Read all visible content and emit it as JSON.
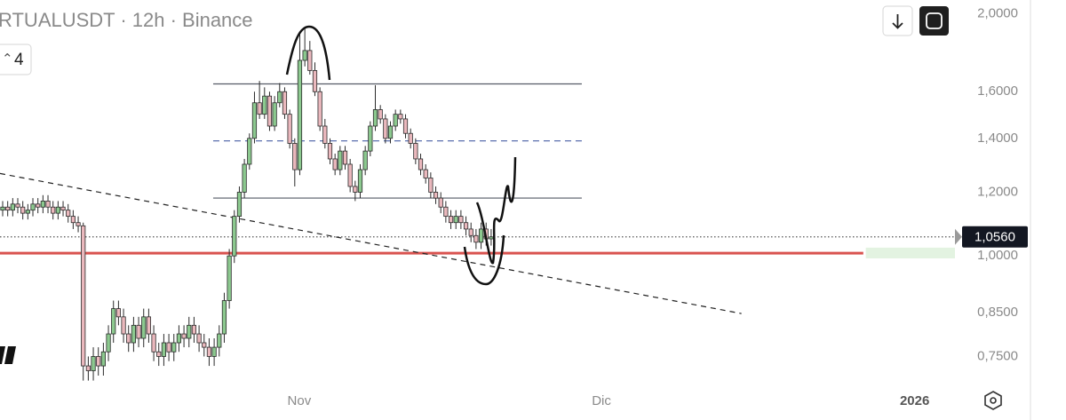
{
  "chart_data": {
    "type": "candlestick",
    "title": "RTUALUSDT · 12h · Binance",
    "indicator_count": "4",
    "log_scale": true,
    "up_color": "#8cc98f",
    "down_color": "#eab8bd",
    "wick_color": "#2a2a2a",
    "xlim": [
      -0.53,
      189.1
    ],
    "ylim": [
      0.68,
      2.08
    ],
    "yticks": [
      {
        "value": 2,
        "label": "2,0000"
      },
      {
        "value": 1.6,
        "label": "1,6000"
      },
      {
        "value": 1.4,
        "label": "1,4000"
      },
      {
        "value": 1.2,
        "label": "1,2000"
      },
      {
        "value": 1,
        "label": "1,0000"
      },
      {
        "value": 0.85,
        "label": "0,8500"
      },
      {
        "value": 0.75,
        "label": "0,7500"
      }
    ],
    "xticks": [
      {
        "value": 58.9,
        "label": "Nov"
      },
      {
        "value": 118.9,
        "label": "Dic"
      },
      {
        "value": 181.1,
        "label": "2026",
        "bold": true
      }
    ],
    "last_price": {
      "value": 1.056,
      "label": "1,0560"
    },
    "x": [
      0,
      1,
      2,
      3,
      4,
      5,
      6,
      7,
      8,
      9,
      10,
      11,
      12,
      13,
      14,
      15,
      16,
      17,
      18,
      19,
      20,
      21,
      22,
      23,
      24,
      25,
      26,
      27,
      28,
      29,
      30,
      31,
      32,
      33,
      34,
      35,
      36,
      37,
      38,
      39,
      40,
      41,
      42,
      43,
      44,
      45,
      46,
      47,
      48,
      49,
      50,
      51,
      52,
      53,
      54,
      55,
      56,
      57,
      58,
      59,
      60,
      61,
      62,
      63,
      64,
      65,
      66,
      67,
      68,
      69,
      70,
      71,
      72,
      73,
      74,
      75,
      76,
      77,
      78,
      79,
      80,
      81,
      82,
      83,
      84,
      85,
      86,
      87,
      88,
      89,
      90,
      91,
      92,
      93,
      94,
      95,
      96,
      97
    ],
    "candles": {
      "open": [
        1.14,
        1.15,
        1.14,
        1.16,
        1.15,
        1.13,
        1.14,
        1.16,
        1.15,
        1.17,
        1.15,
        1.13,
        1.15,
        1.14,
        1.12,
        1.1,
        1.09,
        0.73,
        0.72,
        0.75,
        0.73,
        0.76,
        0.8,
        0.86,
        0.84,
        0.8,
        0.78,
        0.82,
        0.79,
        0.84,
        0.8,
        0.76,
        0.75,
        0.78,
        0.76,
        0.78,
        0.8,
        0.79,
        0.82,
        0.8,
        0.78,
        0.77,
        0.75,
        0.77,
        0.8,
        0.88,
        1.0,
        1.12,
        1.2,
        1.3,
        1.4,
        1.55,
        1.5,
        1.58,
        1.45,
        1.55,
        1.6,
        1.5,
        1.38,
        1.28,
        1.75,
        1.8,
        1.7,
        1.6,
        1.45,
        1.38,
        1.32,
        1.28,
        1.35,
        1.3,
        1.22,
        1.2,
        1.28,
        1.35,
        1.45,
        1.52,
        1.48,
        1.4,
        1.45,
        1.5,
        1.48,
        1.42,
        1.38,
        1.32,
        1.28,
        1.25,
        1.2,
        1.18,
        1.15,
        1.12,
        1.1,
        1.12,
        1.1,
        1.08,
        1.06,
        1.04,
        1.08,
        1.05
      ],
      "high": [
        1.17,
        1.17,
        1.18,
        1.18,
        1.17,
        1.16,
        1.18,
        1.18,
        1.19,
        1.19,
        1.17,
        1.17,
        1.17,
        1.16,
        1.14,
        1.12,
        1.1,
        0.75,
        0.77,
        0.77,
        0.78,
        0.82,
        0.88,
        0.88,
        0.86,
        0.82,
        0.84,
        0.84,
        0.86,
        0.86,
        0.82,
        0.78,
        0.8,
        0.8,
        0.8,
        0.82,
        0.82,
        0.84,
        0.84,
        0.82,
        0.8,
        0.79,
        0.79,
        0.82,
        0.9,
        1.02,
        1.14,
        1.22,
        1.32,
        1.42,
        1.6,
        1.65,
        1.62,
        1.6,
        1.58,
        1.64,
        1.62,
        1.52,
        1.4,
        1.9,
        1.92,
        1.85,
        1.74,
        1.62,
        1.48,
        1.4,
        1.34,
        1.37,
        1.37,
        1.32,
        1.24,
        1.3,
        1.37,
        1.47,
        1.63,
        1.54,
        1.5,
        1.47,
        1.52,
        1.52,
        1.5,
        1.44,
        1.4,
        1.34,
        1.3,
        1.27,
        1.22,
        1.2,
        1.17,
        1.14,
        1.14,
        1.14,
        1.12,
        1.1,
        1.08,
        1.1,
        1.1,
        1.08
      ],
      "low": [
        1.12,
        1.12,
        1.12,
        1.13,
        1.11,
        1.11,
        1.12,
        1.13,
        1.13,
        1.13,
        1.11,
        1.11,
        1.12,
        1.1,
        1.08,
        1.07,
        0.7,
        0.7,
        0.7,
        0.71,
        0.71,
        0.74,
        0.78,
        0.82,
        0.78,
        0.76,
        0.76,
        0.77,
        0.77,
        0.78,
        0.74,
        0.73,
        0.73,
        0.74,
        0.74,
        0.76,
        0.77,
        0.77,
        0.78,
        0.76,
        0.75,
        0.73,
        0.73,
        0.75,
        0.78,
        0.86,
        0.98,
        1.1,
        1.18,
        1.28,
        1.38,
        1.48,
        1.48,
        1.43,
        1.43,
        1.53,
        1.48,
        1.36,
        1.22,
        1.26,
        1.72,
        1.68,
        1.58,
        1.43,
        1.36,
        1.3,
        1.26,
        1.26,
        1.28,
        1.2,
        1.17,
        1.18,
        1.26,
        1.33,
        1.43,
        1.46,
        1.38,
        1.38,
        1.43,
        1.46,
        1.4,
        1.36,
        1.3,
        1.26,
        1.23,
        1.18,
        1.16,
        1.13,
        1.1,
        1.08,
        1.08,
        1.08,
        1.06,
        1.04,
        1.02,
        1.02,
        1.03,
        1.03
      ],
      "close": [
        1.15,
        1.14,
        1.16,
        1.15,
        1.13,
        1.14,
        1.16,
        1.15,
        1.17,
        1.15,
        1.13,
        1.15,
        1.14,
        1.12,
        1.1,
        1.09,
        0.73,
        0.72,
        0.75,
        0.73,
        0.76,
        0.8,
        0.86,
        0.84,
        0.8,
        0.78,
        0.82,
        0.79,
        0.84,
        0.8,
        0.76,
        0.75,
        0.78,
        0.76,
        0.78,
        0.8,
        0.79,
        0.82,
        0.8,
        0.78,
        0.77,
        0.75,
        0.77,
        0.8,
        0.88,
        1.0,
        1.12,
        1.2,
        1.3,
        1.4,
        1.55,
        1.5,
        1.58,
        1.45,
        1.55,
        1.6,
        1.5,
        1.38,
        1.28,
        1.75,
        1.8,
        1.7,
        1.6,
        1.45,
        1.38,
        1.32,
        1.28,
        1.35,
        1.3,
        1.22,
        1.2,
        1.28,
        1.35,
        1.45,
        1.52,
        1.48,
        1.4,
        1.45,
        1.5,
        1.48,
        1.42,
        1.38,
        1.32,
        1.28,
        1.25,
        1.2,
        1.18,
        1.15,
        1.12,
        1.1,
        1.12,
        1.1,
        1.08,
        1.06,
        1.04,
        1.08,
        1.05,
        1.056
      ]
    },
    "levels": [
      {
        "value": 1.636,
        "x": [
          41.8,
          115
        ],
        "color": "#555a66",
        "style": "solid"
      },
      {
        "value": 1.39,
        "x": [
          41.8,
          115
        ],
        "color": "#5b6fae",
        "style": "dashed"
      },
      {
        "value": 1.18,
        "x": [
          41.8,
          115
        ],
        "color": "#555a66",
        "style": "solid"
      },
      {
        "value": 1.008,
        "x": [
          -0.53,
          170.9
        ],
        "color": "#d9534f",
        "style": "thick"
      },
      {
        "value": 1.056,
        "x": [
          -0.53,
          189.1
        ],
        "color": "#555555",
        "style": "dotted"
      }
    ],
    "zone": {
      "x": [
        171.4,
        189.1
      ],
      "y": [
        0.993,
        1.024
      ],
      "color": "#e3f3e1"
    },
    "trendline": {
      "x": [
        -0.53,
        146.7
      ],
      "y": [
        1.266,
        0.848
      ],
      "color": "#222222"
    }
  }
}
